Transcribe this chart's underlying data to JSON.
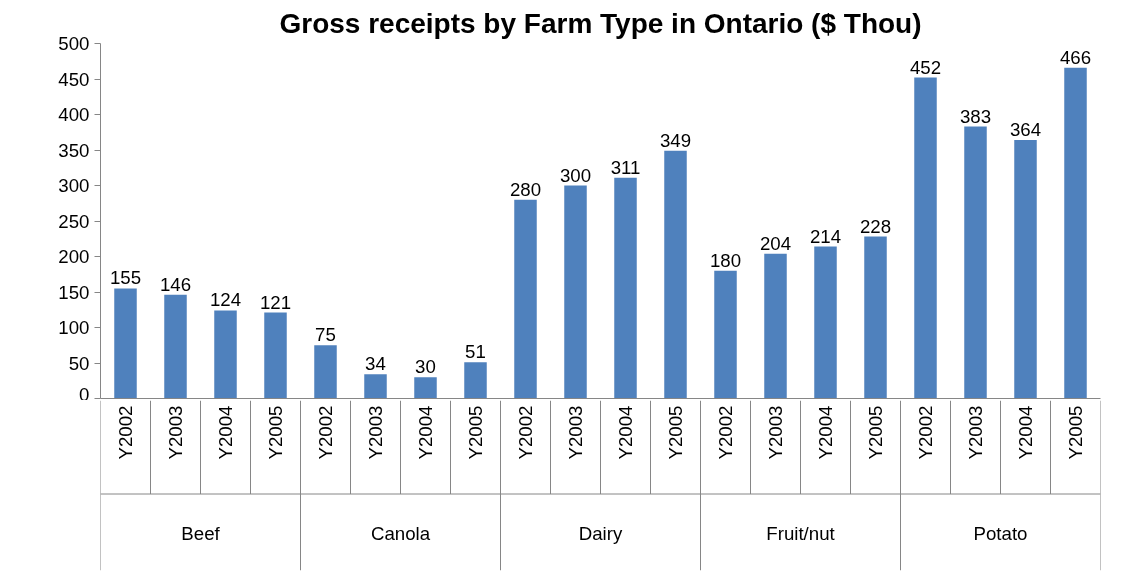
{
  "chart_data": {
    "type": "bar",
    "title": "Gross receipts by Farm Type in Ontario ($ Thou)",
    "categories": [
      "Beef",
      "Canola",
      "Dairy",
      "Fruit/nut",
      "Potato"
    ],
    "series": [
      {
        "name": "Y2002",
        "color": "#4f81bd",
        "values": [
          155,
          75,
          280,
          180,
          452
        ]
      },
      {
        "name": "Y2003",
        "color": "#4f81bd",
        "values": [
          146,
          34,
          300,
          204,
          383
        ]
      },
      {
        "name": "Y2004",
        "color": "#4f81bd",
        "values": [
          124,
          30,
          311,
          214,
          364
        ]
      },
      {
        "name": "Y2005",
        "color": "#4f81bd",
        "values": [
          121,
          51,
          349,
          228,
          466
        ]
      }
    ],
    "ylim": [
      0,
      500
    ],
    "yticks": [
      0,
      50,
      100,
      150,
      200,
      250,
      300,
      350,
      400,
      450,
      500
    ],
    "grid": false,
    "data_labels": true,
    "tick_labels": "y"
  }
}
